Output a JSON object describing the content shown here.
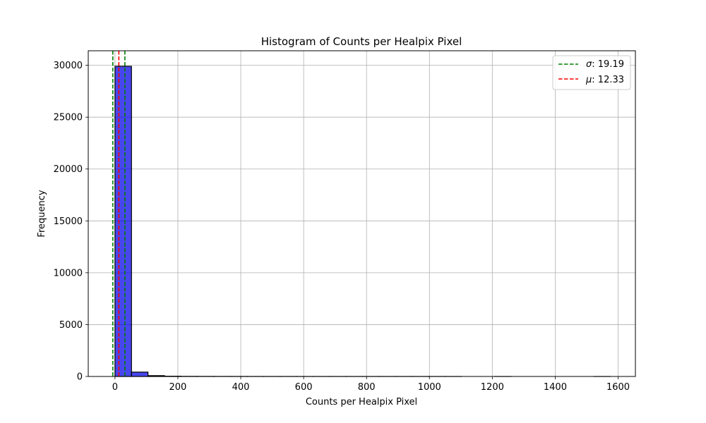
{
  "chart_data": {
    "type": "bar",
    "title": "Histogram of Counts per Healpix Pixel",
    "xlabel": "Counts per Healpix Pixel",
    "ylabel": "Frequency",
    "xlim": [
      -85,
      1655
    ],
    "ylim": [
      0,
      31400
    ],
    "xticks": [
      0,
      200,
      400,
      600,
      800,
      1000,
      1200,
      1400,
      1600
    ],
    "yticks": [
      0,
      5000,
      10000,
      15000,
      20000,
      25000,
      30000
    ],
    "grid": true,
    "legend_position": "top-right",
    "bin_edges": [
      0,
      52.5,
      105,
      157.5,
      210,
      262.5,
      315,
      367.5,
      420,
      472.5,
      525,
      577.5,
      630,
      682.5,
      735,
      787.5,
      840,
      892.5,
      945,
      997.5,
      1050,
      1102.5,
      1155,
      1207.5,
      1260,
      1312.5,
      1365,
      1417.5,
      1470,
      1522.5,
      1575
    ],
    "values": [
      29900,
      420,
      80,
      25,
      12,
      8,
      5,
      4,
      3,
      2,
      2,
      1,
      1,
      1,
      1,
      1,
      1,
      1,
      1,
      1,
      1,
      0,
      0,
      1,
      0,
      0,
      0,
      0,
      0,
      1
    ],
    "bar_color": "#0000e6",
    "bar_edge_color": "#000000",
    "vlines": [
      {
        "name": "σ",
        "label": "19.19",
        "positions": [
          -6.86,
          31.52
        ],
        "color": "#008000"
      },
      {
        "name": "μ",
        "label": "12.33",
        "positions": [
          12.33
        ],
        "color": "#ff0000"
      }
    ],
    "legend": [
      {
        "symbol": "σ",
        "text": ": 19.19",
        "color": "#008000"
      },
      {
        "symbol": "μ",
        "text": ": 12.33",
        "color": "#ff0000"
      }
    ]
  }
}
